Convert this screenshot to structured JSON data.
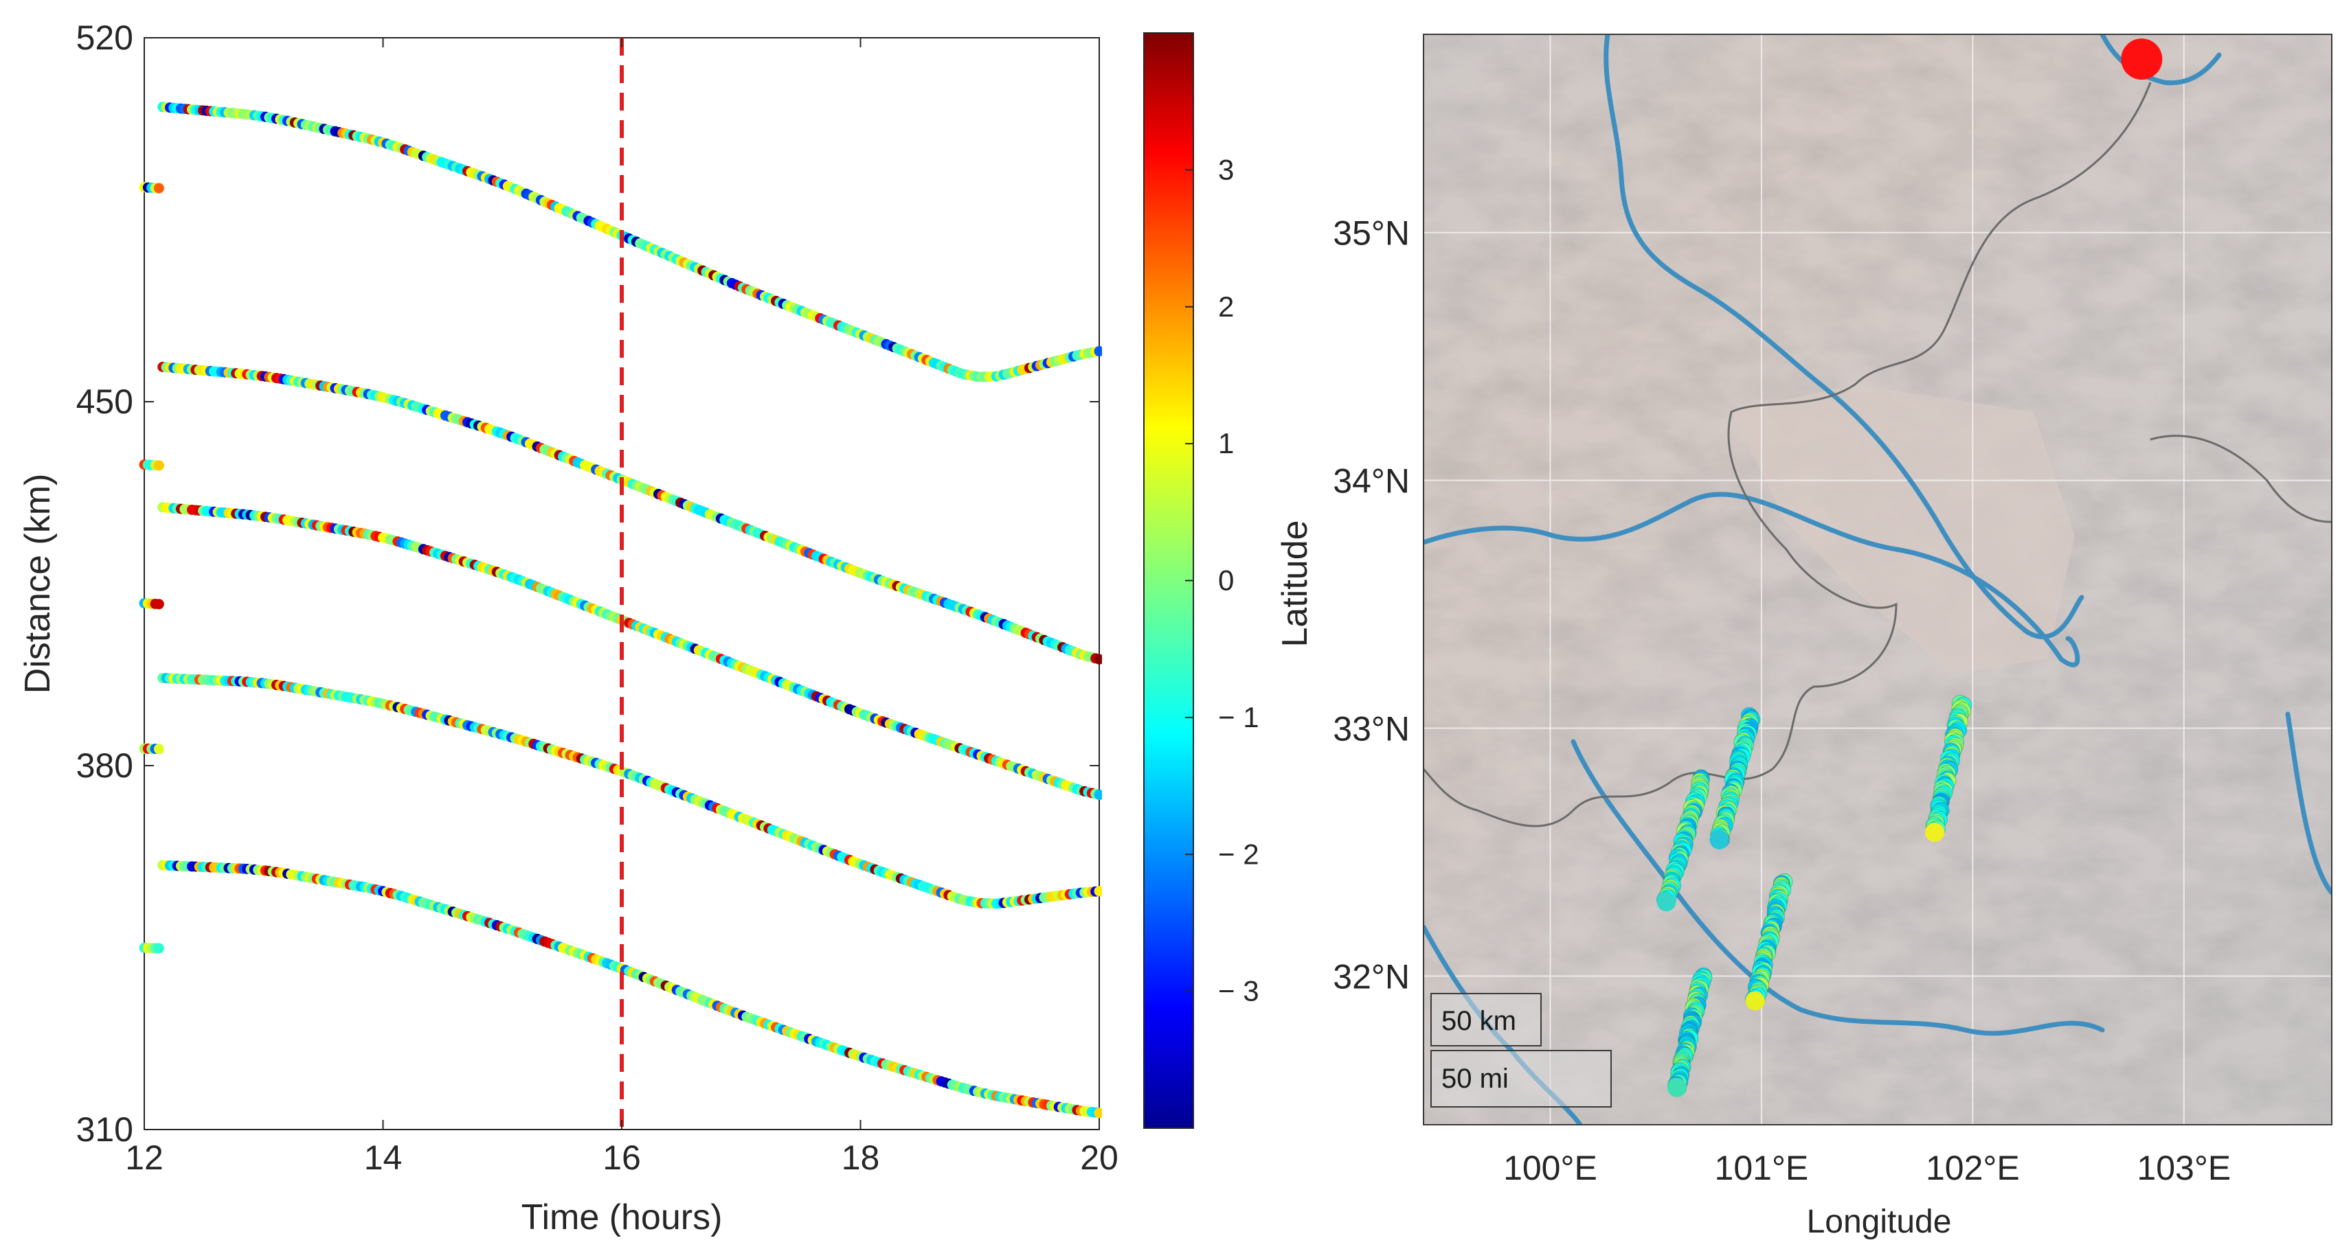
{
  "chart_data": [
    {
      "type": "scatter",
      "title": "",
      "xlabel": "Time (hours)",
      "ylabel": "Distance (km)",
      "xlim": [
        12,
        20
      ],
      "ylim": [
        310,
        520
      ],
      "xticks": [
        12,
        14,
        16,
        18,
        20
      ],
      "xtick_labels": [
        "12",
        "14",
        "16",
        "18",
        "20"
      ],
      "yticks": [
        310,
        380,
        450,
        520
      ],
      "ytick_labels": [
        "310",
        "380",
        "450",
        "520"
      ],
      "grid": false,
      "vline": {
        "x": 16,
        "style": "dashed",
        "color": "#e02020"
      },
      "color_encoding": "point color = value on jet colorbar",
      "series": [
        {
          "x": [
            12,
            13,
            14,
            15,
            16,
            17,
            18,
            19,
            20
          ],
          "y": [
            507,
            505,
            500,
            492,
            482,
            472,
            463,
            454,
            460
          ]
        },
        {
          "x": [
            12,
            13,
            14,
            15,
            16,
            17,
            18,
            19,
            20
          ],
          "y": [
            457,
            455,
            451,
            444,
            435,
            426,
            417,
            409,
            400
          ]
        },
        {
          "x": [
            12,
            13,
            14,
            15,
            16,
            17,
            18,
            19,
            20
          ],
          "y": [
            430,
            428,
            424,
            417,
            408,
            399,
            390,
            382,
            374
          ]
        },
        {
          "x": [
            12,
            13,
            14,
            15,
            16,
            17,
            18,
            19,
            20
          ],
          "y": [
            397,
            396,
            392,
            386,
            379,
            370,
            361,
            353,
            356
          ]
        },
        {
          "x": [
            12,
            13,
            14,
            15,
            16,
            17,
            18,
            19,
            20
          ],
          "y": [
            361,
            360,
            356,
            349,
            341,
            332,
            324,
            317,
            313
          ]
        }
      ]
    },
    {
      "type": "colorbar",
      "colormap": "jet",
      "range": [
        -4,
        4
      ],
      "ticks": [
        3,
        2,
        1,
        0,
        -1,
        -2,
        -3
      ],
      "tick_labels": [
        "3",
        "2",
        "1",
        "0",
        "− 1",
        "− 2",
        "− 3"
      ]
    },
    {
      "type": "map",
      "basemap": "shaded terrain relief",
      "xlabel": "Longitude",
      "ylabel": "Latitude",
      "lon_range": [
        99.4,
        103.7
      ],
      "lat_range": [
        31.4,
        35.8
      ],
      "xticks": [
        100,
        101,
        102,
        103
      ],
      "xtick_labels": [
        "100°E",
        "101°E",
        "102°E",
        "103°E"
      ],
      "yticks": [
        35,
        34,
        33,
        32
      ],
      "ytick_labels": [
        "35°N",
        "34°N",
        "33°N",
        "32°N"
      ],
      "scale_bars": [
        "50 km",
        "50 mi"
      ],
      "source_marker": {
        "lon": 102.8,
        "lat": 35.7,
        "color": "#ff1010"
      },
      "station_tracks": [
        {
          "start": [
            100.55,
            32.3
          ],
          "end": [
            100.72,
            32.8
          ],
          "end_color": "#33d6c8"
        },
        {
          "start": [
            100.8,
            32.55
          ],
          "end": [
            100.95,
            33.05
          ],
          "end_color": "#26c8d8"
        },
        {
          "start": [
            100.97,
            31.9
          ],
          "end": [
            101.1,
            32.38
          ],
          "end_color": "#e8f020"
        },
        {
          "start": [
            100.6,
            31.55
          ],
          "end": [
            100.72,
            32.0
          ],
          "end_color": "#3de0b0"
        },
        {
          "start": [
            101.82,
            32.58
          ],
          "end": [
            101.95,
            33.1
          ],
          "end_color": "#f0f020"
        }
      ]
    }
  ]
}
